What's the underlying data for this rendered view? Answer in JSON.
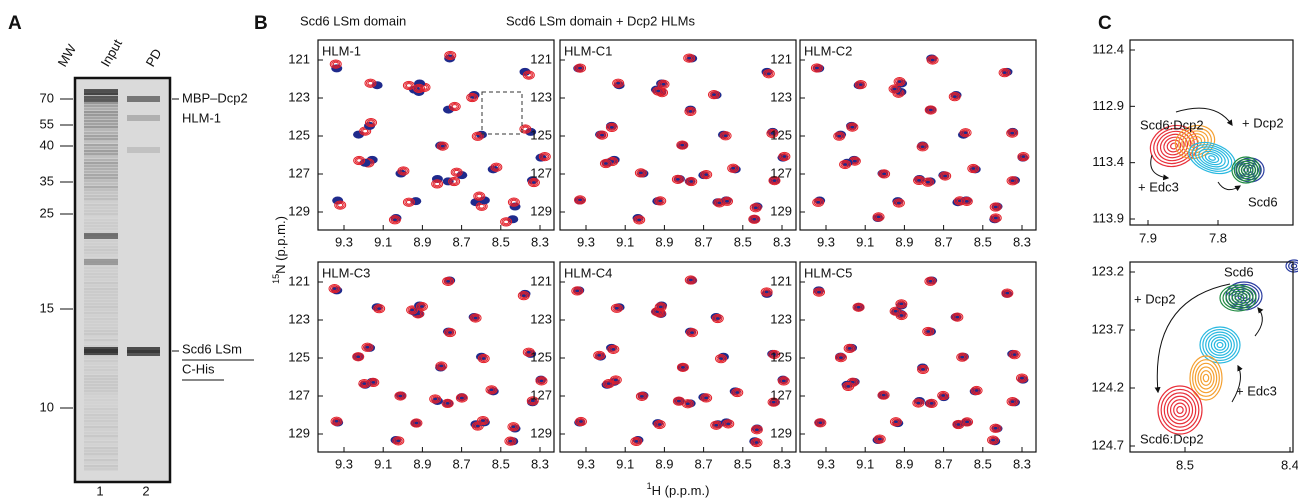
{
  "panel_a": {
    "label": "A",
    "lane_headers": [
      "MW",
      "Input",
      "PD"
    ],
    "mw_markers": [
      "70",
      "55",
      "40",
      "35",
      "25",
      "15",
      "10"
    ],
    "annotations": [
      [
        "MBP–Dcp2",
        "HLM-1"
      ],
      [
        "Scd6 LSm",
        "C-His"
      ]
    ],
    "lane_numbers": [
      "1",
      "2"
    ]
  },
  "panel_b": {
    "label": "B",
    "legend": [
      {
        "text": "Scd6 LSm domain",
        "color": "#1f2a8c"
      },
      {
        "text": "Scd6 LSm domain + Dcp2 HLMs",
        "color": "#e3202a"
      }
    ],
    "spectra": [
      "HLM-1",
      "HLM-C1",
      "HLM-C2",
      "HLM-C3",
      "HLM-C4",
      "HLM-C5"
    ],
    "y_ticks": [
      "121",
      "123",
      "125",
      "127",
      "129"
    ],
    "x_ticks": [
      "9.3",
      "9.1",
      "8.9",
      "8.7",
      "8.5",
      "8.3"
    ],
    "y_label": {
      "sup": "15",
      "text": "N (p.p.m.)"
    },
    "x_label": {
      "sup": "1",
      "text": "H (p.p.m.)"
    }
  },
  "panel_c": {
    "label": "C",
    "top": {
      "y_ticks": [
        "112.4",
        "112.9",
        "113.4",
        "113.9"
      ],
      "x_ticks": [
        "7.9",
        "7.8"
      ],
      "annotations": [
        "Scd6:Dcp2",
        "+ Dcp2",
        "+ Edc3",
        "Scd6"
      ]
    },
    "bottom": {
      "y_ticks": [
        "123.2",
        "123.7",
        "124.2",
        "124.7"
      ],
      "x_ticks": [
        "8.5",
        "8.4"
      ],
      "annotations": [
        "Scd6",
        "+ Dcp2",
        "+ Edc3",
        "Scd6:Dcp2"
      ]
    }
  }
}
